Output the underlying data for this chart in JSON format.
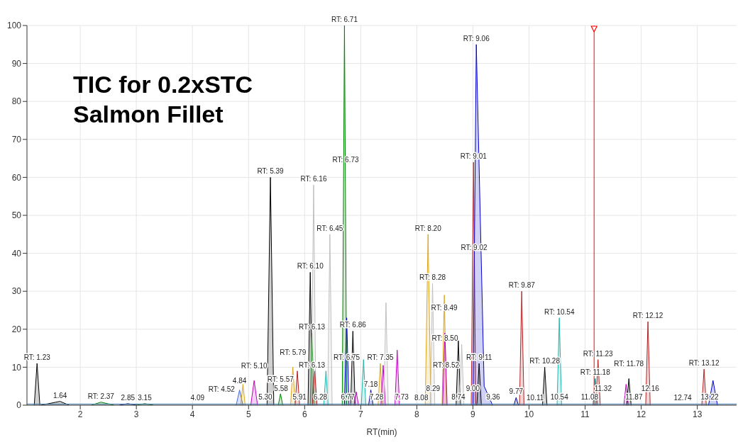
{
  "chart_data": {
    "type": "area",
    "title": "TIC for 0.2xSTC Salmon Fillet",
    "xlabel": "RT(min)",
    "xlim": [
      1.05,
      13.7
    ],
    "xticks": [
      2,
      3,
      4,
      5,
      6,
      7,
      8,
      9,
      10,
      11,
      12,
      13
    ],
    "ylim": [
      0,
      100
    ],
    "yticks": [
      0,
      10,
      20,
      30,
      40,
      50,
      60,
      70,
      80,
      90,
      100
    ],
    "grid": true,
    "marker": "none",
    "line_style": "solid",
    "ref_lines": [
      {
        "axis": "x",
        "value": 11.16,
        "color": "#ff0000"
      }
    ],
    "series": [
      {
        "color": "#000000",
        "x": [
          1.18,
          1.23,
          1.28
        ],
        "values": [
          0,
          11,
          0
        ]
      },
      {
        "color": "#000000",
        "x": [
          1.3,
          1.64,
          1.8
        ],
        "values": [
          0,
          1,
          0
        ]
      },
      {
        "color": "#008000",
        "x": [
          2.2,
          2.37,
          2.6
        ],
        "values": [
          0,
          0.8,
          0
        ]
      },
      {
        "color": "#00008b",
        "x": [
          2.7,
          2.85,
          3.0
        ],
        "values": [
          0,
          0.4,
          0
        ]
      },
      {
        "color": "#008000",
        "x": [
          3.0,
          3.15,
          3.3
        ],
        "values": [
          0,
          0.4,
          0
        ]
      },
      {
        "type": "line",
        "color": "#4682b4",
        "x": [
          1.05,
          13.7
        ],
        "values": [
          0.3,
          0.3
        ]
      },
      {
        "color": "#4169e1",
        "x": [
          4.78,
          4.84,
          4.9
        ],
        "values": [
          0,
          4,
          0
        ]
      },
      {
        "color": "#daa520",
        "x": [
          4.86,
          4.9,
          4.94
        ],
        "values": [
          0,
          5.5,
          0
        ]
      },
      {
        "color": "#c000c0",
        "x": [
          5.04,
          5.1,
          5.16
        ],
        "values": [
          0,
          6.5,
          0
        ]
      },
      {
        "color": "#000000",
        "x": [
          5.33,
          5.39,
          5.45
        ],
        "values": [
          0,
          60,
          0
        ]
      },
      {
        "color": "#008000",
        "x": [
          5.53,
          5.57,
          5.61
        ],
        "values": [
          0,
          3,
          0
        ]
      },
      {
        "color": "#daa520",
        "x": [
          5.75,
          5.79,
          5.83
        ],
        "values": [
          0,
          10,
          0
        ]
      },
      {
        "color": "#b22222",
        "x": [
          5.83,
          5.87,
          5.91
        ],
        "values": [
          0,
          9,
          0
        ]
      },
      {
        "color": "#000000",
        "x": [
          6.06,
          6.1,
          6.14
        ],
        "values": [
          0,
          35,
          0
        ]
      },
      {
        "color": "#228b22",
        "x": [
          6.1,
          6.13,
          6.17
        ],
        "values": [
          0,
          19,
          0
        ]
      },
      {
        "color": "#c0c0c0",
        "x": [
          6.12,
          6.16,
          6.2
        ],
        "values": [
          0,
          58,
          0
        ]
      },
      {
        "color": "#b22222",
        "x": [
          6.14,
          6.18,
          6.22
        ],
        "values": [
          0,
          9,
          0
        ]
      },
      {
        "color": "#20b2aa",
        "x": [
          6.34,
          6.38,
          6.42
        ],
        "values": [
          0,
          9,
          0
        ]
      },
      {
        "color": "#c0c0c0",
        "x": [
          6.41,
          6.45,
          6.49
        ],
        "values": [
          0,
          45,
          0
        ]
      },
      {
        "color": "#008000",
        "x": [
          6.67,
          6.71,
          6.75
        ],
        "values": [
          0,
          100,
          0
        ]
      },
      {
        "color": "#0000cd",
        "x": [
          6.71,
          6.75,
          6.79
        ],
        "values": [
          0,
          23,
          0
        ]
      },
      {
        "color": "#000000",
        "x": [
          6.82,
          6.86,
          6.9
        ],
        "values": [
          0,
          19.5,
          0
        ]
      },
      {
        "color": "#c000c0",
        "x": [
          6.88,
          6.92,
          6.96
        ],
        "values": [
          0,
          3.5,
          0
        ]
      },
      {
        "color": "#20b2aa",
        "x": [
          7.01,
          7.05,
          7.09
        ],
        "values": [
          0,
          12,
          0
        ]
      },
      {
        "color": "#00008b",
        "x": [
          7.14,
          7.18,
          7.22
        ],
        "values": [
          0,
          4,
          0
        ]
      },
      {
        "color": "#daa520",
        "x": [
          7.31,
          7.35,
          7.39
        ],
        "values": [
          0,
          11,
          0
        ]
      },
      {
        "color": "#c000c0",
        "x": [
          7.36,
          7.4,
          7.44
        ],
        "values": [
          0,
          10.5,
          0
        ]
      },
      {
        "color": "#c0c0c0",
        "x": [
          7.41,
          7.45,
          7.49
        ],
        "values": [
          0,
          27,
          0
        ]
      },
      {
        "color": "#c000c0",
        "x": [
          7.61,
          7.65,
          7.69
        ],
        "values": [
          0,
          14.5,
          0
        ]
      },
      {
        "color": "#daa520",
        "x": [
          8.15,
          8.2,
          8.25
        ],
        "values": [
          0,
          45,
          0
        ]
      },
      {
        "color": "#c0c0c0",
        "x": [
          8.24,
          8.28,
          8.32
        ],
        "values": [
          0,
          32,
          0
        ]
      },
      {
        "color": "#daa520",
        "x": [
          8.45,
          8.49,
          8.53
        ],
        "values": [
          0,
          29,
          0
        ]
      },
      {
        "color": "#c000c0",
        "x": [
          8.46,
          8.5,
          8.54
        ],
        "values": [
          0,
          19,
          0
        ]
      },
      {
        "color": "#000000",
        "x": [
          8.7,
          8.74,
          8.78
        ],
        "values": [
          0,
          17,
          0
        ]
      },
      {
        "color": "#c0c0c0",
        "x": [
          8.76,
          8.8,
          8.84
        ],
        "values": [
          0,
          16,
          0
        ]
      },
      {
        "color": "#b22222",
        "x": [
          8.97,
          9.01,
          9.05
        ],
        "values": [
          0,
          64,
          0
        ]
      },
      {
        "color": "#0000cd",
        "x": [
          9.0,
          9.06,
          9.2,
          9.35
        ],
        "values": [
          0,
          95,
          5,
          0
        ]
      },
      {
        "color": "#000000",
        "x": [
          9.07,
          9.11,
          9.15
        ],
        "values": [
          0,
          11,
          0
        ]
      },
      {
        "color": "#00008b",
        "x": [
          9.73,
          9.77,
          9.81
        ],
        "values": [
          0,
          2,
          0
        ]
      },
      {
        "color": "#b22222",
        "x": [
          9.83,
          9.87,
          9.91
        ],
        "values": [
          0,
          30,
          0
        ]
      },
      {
        "color": "#000000",
        "x": [
          10.24,
          10.28,
          10.32
        ],
        "values": [
          0,
          10,
          0
        ]
      },
      {
        "color": "#20b2aa",
        "x": [
          10.5,
          10.54,
          10.58
        ],
        "values": [
          0,
          23,
          0
        ]
      },
      {
        "color": "#008b8b",
        "x": [
          11.14,
          11.18,
          11.22
        ],
        "values": [
          0,
          7,
          0
        ]
      },
      {
        "color": "#b22222",
        "x": [
          11.19,
          11.23,
          11.27
        ],
        "values": [
          0,
          12,
          0
        ]
      },
      {
        "color": "#c000c0",
        "x": [
          11.69,
          11.73,
          11.77
        ],
        "values": [
          0,
          5.5,
          0
        ]
      },
      {
        "color": "#000000",
        "x": [
          11.74,
          11.78,
          11.82
        ],
        "values": [
          0,
          7,
          0
        ]
      },
      {
        "color": "#b22222",
        "x": [
          12.08,
          12.12,
          12.16
        ],
        "values": [
          0,
          22,
          0
        ]
      },
      {
        "color": "#b22222",
        "x": [
          13.08,
          13.12,
          13.16
        ],
        "values": [
          0,
          9.5,
          0
        ]
      },
      {
        "color": "#0000cd",
        "x": [
          13.2,
          13.28,
          13.36
        ],
        "values": [
          0,
          6.5,
          0
        ]
      }
    ],
    "annotations": [
      {
        "text": "RT: 1.23",
        "x": 1.23,
        "y": 11
      },
      {
        "text": "1.64",
        "x": 1.64,
        "y": 1
      },
      {
        "text": "RT: 2.37",
        "x": 2.37,
        "y": 0.8
      },
      {
        "text": "2.85",
        "x": 2.85,
        "y": 0.4
      },
      {
        "text": "3.15",
        "x": 3.15,
        "y": 0.4
      },
      {
        "text": "4.09",
        "x": 4.09,
        "y": 0.3
      },
      {
        "text": "RT: 4.52",
        "x": 4.52,
        "y": 0.3
      },
      {
        "text": "4.84",
        "x": 4.84,
        "y": 0.4
      },
      {
        "text": "RT: 5.10",
        "x": 5.1,
        "y": 6.5
      },
      {
        "text": "5.30",
        "x": 5.3,
        "y": 0.5
      },
      {
        "text": "RT: 5.39",
        "x": 5.39,
        "y": 60
      },
      {
        "text": "RT: 5.57",
        "x": 5.57,
        "y": 3
      },
      {
        "text": "5.58",
        "x": 5.58,
        "y": 0.5
      },
      {
        "text": "RT: 5.79",
        "x": 5.79,
        "y": 10
      },
      {
        "text": "5.91",
        "x": 5.91,
        "y": 0.5
      },
      {
        "text": "RT: 6.10",
        "x": 6.1,
        "y": 35
      },
      {
        "text": "RT: 6.13",
        "x": 6.13,
        "y": 19
      },
      {
        "text": "RT: 6.13",
        "x": 6.13,
        "y": 9
      },
      {
        "text": "RT: 6.16",
        "x": 6.16,
        "y": 58
      },
      {
        "text": "6.28",
        "x": 6.28,
        "y": 0.5
      },
      {
        "text": "RT: 6.45",
        "x": 6.45,
        "y": 45
      },
      {
        "text": "RT: 6.71",
        "x": 6.71,
        "y": 100
      },
      {
        "text": "RT: 6.73",
        "x": 6.73,
        "y": 63
      },
      {
        "text": "RT: 6.75",
        "x": 6.75,
        "y": 11
      },
      {
        "text": "6.77",
        "x": 6.77,
        "y": 0.5
      },
      {
        "text": "RT: 6.86",
        "x": 6.86,
        "y": 19.5
      },
      {
        "text": "7.18",
        "x": 7.18,
        "y": 4
      },
      {
        "text": "7.28",
        "x": 7.28,
        "y": 0.5
      },
      {
        "text": "RT: 7.35",
        "x": 7.35,
        "y": 11
      },
      {
        "text": "7.73",
        "x": 7.73,
        "y": 0.5
      },
      {
        "text": "8.08",
        "x": 8.08,
        "y": 0.3
      },
      {
        "text": "RT: 8.20",
        "x": 8.2,
        "y": 45
      },
      {
        "text": "RT: 8.28",
        "x": 8.28,
        "y": 32
      },
      {
        "text": "8.29",
        "x": 8.29,
        "y": 0.5
      },
      {
        "text": "RT: 8.49",
        "x": 8.49,
        "y": 24
      },
      {
        "text": "RT: 8.50",
        "x": 8.5,
        "y": 16
      },
      {
        "text": "RT: 8.52",
        "x": 8.52,
        "y": 9
      },
      {
        "text": "8.74",
        "x": 8.74,
        "y": 0.5
      },
      {
        "text": "RT: 9.01",
        "x": 9.01,
        "y": 64
      },
      {
        "text": "RT: 9.02",
        "x": 9.02,
        "y": 40
      },
      {
        "text": "RT: 9.06",
        "x": 9.06,
        "y": 95
      },
      {
        "text": "9.00",
        "x": 9.0,
        "y": 0.5
      },
      {
        "text": "RT: 9.11",
        "x": 9.11,
        "y": 11
      },
      {
        "text": "9.36",
        "x": 9.36,
        "y": 0.5
      },
      {
        "text": "9.77",
        "x": 9.77,
        "y": 2
      },
      {
        "text": "RT: 9.87",
        "x": 9.87,
        "y": 30
      },
      {
        "text": "10.11",
        "x": 10.11,
        "y": 0.3
      },
      {
        "text": "RT: 10.28",
        "x": 10.28,
        "y": 10
      },
      {
        "text": "10.54",
        "x": 10.54,
        "y": 0.5
      },
      {
        "text": "RT: 10.54",
        "x": 10.54,
        "y": 23
      },
      {
        "text": "11.08",
        "x": 11.08,
        "y": 0.5
      },
      {
        "text": "RT: 11.18",
        "x": 11.18,
        "y": 7
      },
      {
        "text": "RT: 11.23",
        "x": 11.23,
        "y": 12
      },
      {
        "text": "11.32",
        "x": 11.32,
        "y": 0.5
      },
      {
        "text": "RT: 11.78",
        "x": 11.78,
        "y": 7
      },
      {
        "text": "11.87",
        "x": 11.87,
        "y": 0.5
      },
      {
        "text": "RT: 12.12",
        "x": 12.12,
        "y": 22
      },
      {
        "text": "12.16",
        "x": 12.16,
        "y": 0.5
      },
      {
        "text": "12.74",
        "x": 12.74,
        "y": 0.3
      },
      {
        "text": "RT: 13.12",
        "x": 13.12,
        "y": 9.5
      },
      {
        "text": "13.22",
        "x": 13.22,
        "y": 0.5
      }
    ]
  }
}
